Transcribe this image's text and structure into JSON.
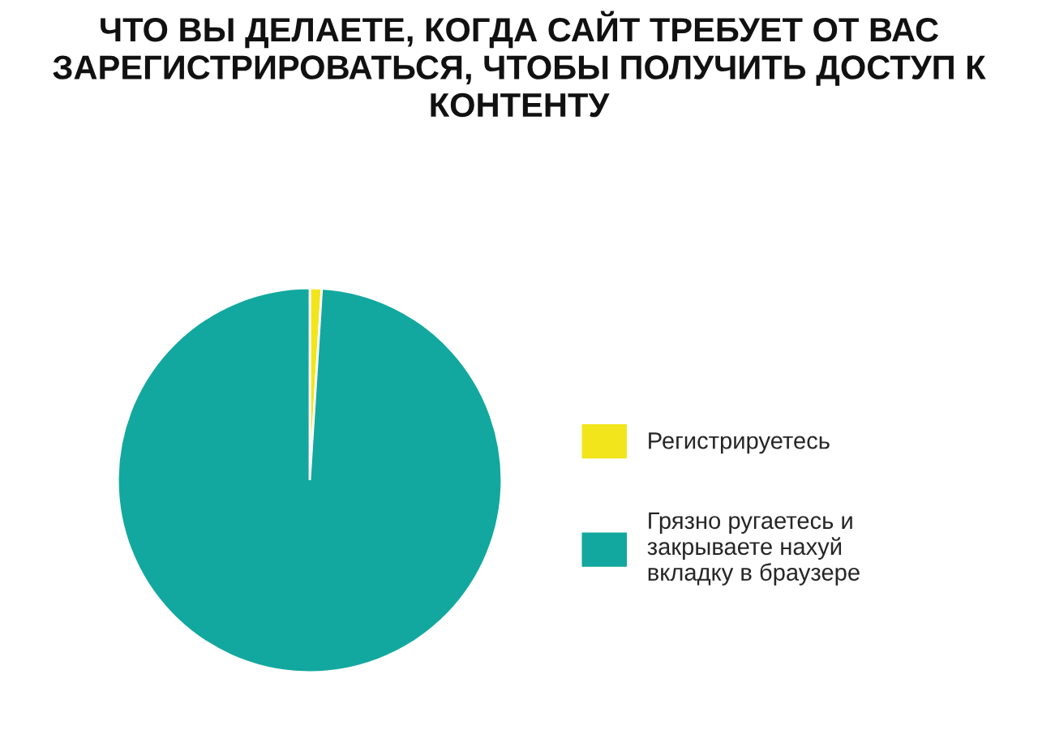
{
  "chart_data": {
    "type": "pie",
    "title": "ЧТО ВЫ ДЕЛАЕТЕ, КОГДА САЙТ ТРЕБУЕТ ОТ ВАС ЗАРЕГИСТРИРОВАТЬСЯ, ЧТОБЫ ПОЛУЧИТЬ ДОСТУП К КОНТЕНТУ",
    "categories": [
      "Регистрируетесь",
      "Грязно ругаетесь и закрываете нахуй вкладку в браузере"
    ],
    "values": [
      1,
      99
    ],
    "colors": [
      "#f2e51c",
      "#12a89f"
    ],
    "legend": "right"
  }
}
